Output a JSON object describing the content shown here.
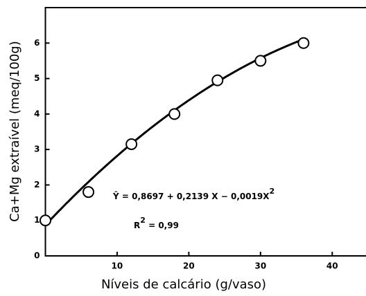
{
  "chart_data": {
    "type": "scatter",
    "x_label": "Níveis de calcário  (g/vaso)",
    "y_label": "Ca+Mg extraível (meq/100g)",
    "x": [
      0,
      6,
      12,
      18,
      24,
      30,
      36
    ],
    "values": [
      1.0,
      1.8,
      3.15,
      4.0,
      4.95,
      5.5,
      6.0
    ],
    "color": "#000000",
    "xlim": [
      0,
      45
    ],
    "xticks": [
      10,
      20,
      30,
      40
    ],
    "ylim": [
      0,
      7
    ],
    "yticks": [
      0,
      1,
      2,
      3,
      4,
      5,
      6
    ],
    "grid": false,
    "fit": {
      "intercept": 0.8697,
      "linear": 0.2139,
      "quadratic": -0.0019
    },
    "annotations": {
      "equation": "Ŷ = 0,8697 + 0,2139 X − 0,0019X",
      "equation_sup": "2",
      "r2_prefix": "R",
      "r2_sup": "2",
      "r2_value": " = 0,99"
    }
  }
}
